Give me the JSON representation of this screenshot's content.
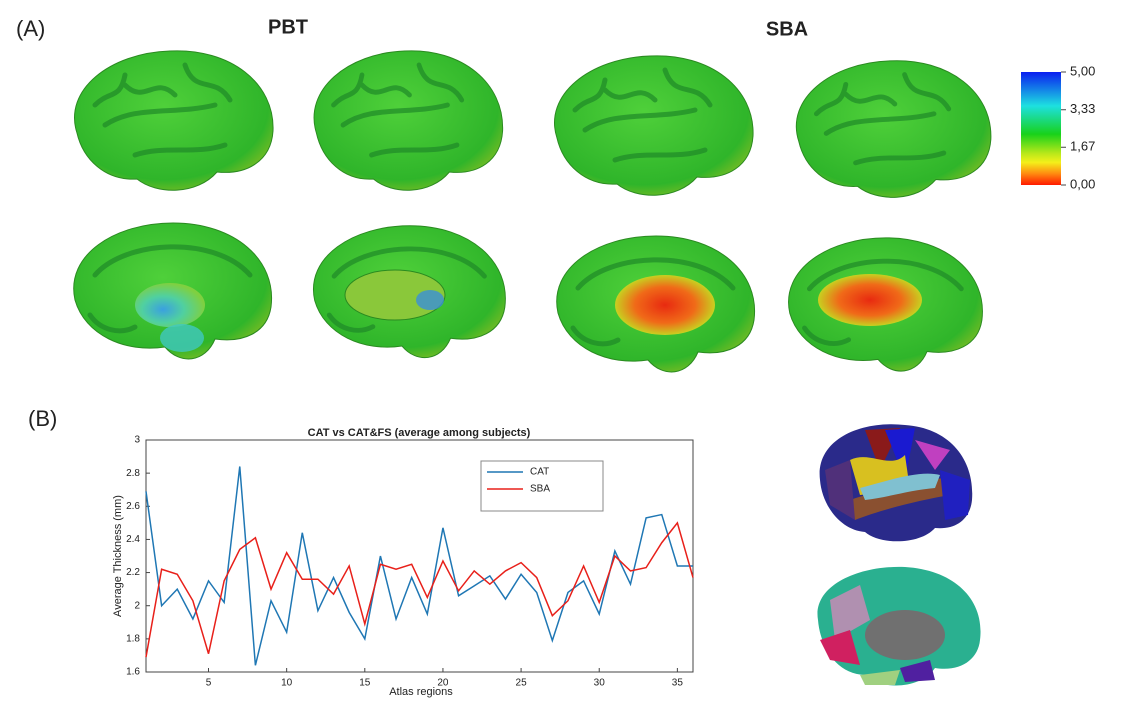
{
  "panel_a": {
    "label": "(A)",
    "headers": [
      "PBT",
      "SBA"
    ],
    "colorbar": {
      "lim": [
        0,
        5
      ],
      "ticks": [
        {
          "value": 5,
          "label": "5,00"
        },
        {
          "value": 3.33,
          "label": "3,33"
        },
        {
          "value": 1.67,
          "label": "1,67"
        },
        {
          "value": 0,
          "label": "0,00"
        }
      ]
    }
  },
  "panel_b": {
    "label": "(B)"
  },
  "chart_data": {
    "type": "line",
    "title": "CAT vs CAT&FS (average among subjects)",
    "xlabel": "Atlas regions",
    "ylabel": "Average Thickness (mm)",
    "x": [
      1,
      2,
      3,
      4,
      5,
      6,
      7,
      8,
      9,
      10,
      11,
      12,
      13,
      14,
      15,
      16,
      17,
      18,
      19,
      20,
      21,
      22,
      23,
      24,
      25,
      26,
      27,
      28,
      29,
      30,
      31,
      32,
      33,
      34,
      35,
      36
    ],
    "series": [
      {
        "name": "CAT",
        "color": "#1f77b4",
        "values": [
          2.69,
          2.0,
          2.1,
          1.92,
          2.15,
          2.02,
          2.84,
          1.64,
          2.03,
          1.84,
          2.44,
          1.97,
          2.17,
          1.96,
          1.8,
          2.3,
          1.92,
          2.17,
          1.95,
          2.47,
          2.06,
          2.12,
          2.18,
          2.04,
          2.19,
          2.08,
          1.79,
          2.08,
          2.15,
          1.95,
          2.33,
          2.13,
          2.53,
          2.55,
          2.24,
          2.24
        ]
      },
      {
        "name": "SBA",
        "color": "#e8201a",
        "values": [
          1.69,
          2.22,
          2.19,
          2.03,
          1.71,
          2.15,
          2.34,
          2.41,
          2.1,
          2.32,
          2.16,
          2.16,
          2.07,
          2.24,
          1.89,
          2.25,
          2.22,
          2.25,
          2.05,
          2.27,
          2.09,
          2.21,
          2.13,
          2.21,
          2.26,
          2.17,
          1.94,
          2.03,
          2.24,
          2.02,
          2.3,
          2.21,
          2.23,
          2.38,
          2.5,
          2.17
        ]
      }
    ],
    "xlim": [
      1,
      36
    ],
    "ylim": [
      1.6,
      3
    ],
    "xticks": [
      5,
      10,
      15,
      20,
      25,
      30,
      35
    ],
    "yticks": [
      1.6,
      1.8,
      2,
      2.2,
      2.4,
      2.6,
      2.8,
      3
    ]
  }
}
